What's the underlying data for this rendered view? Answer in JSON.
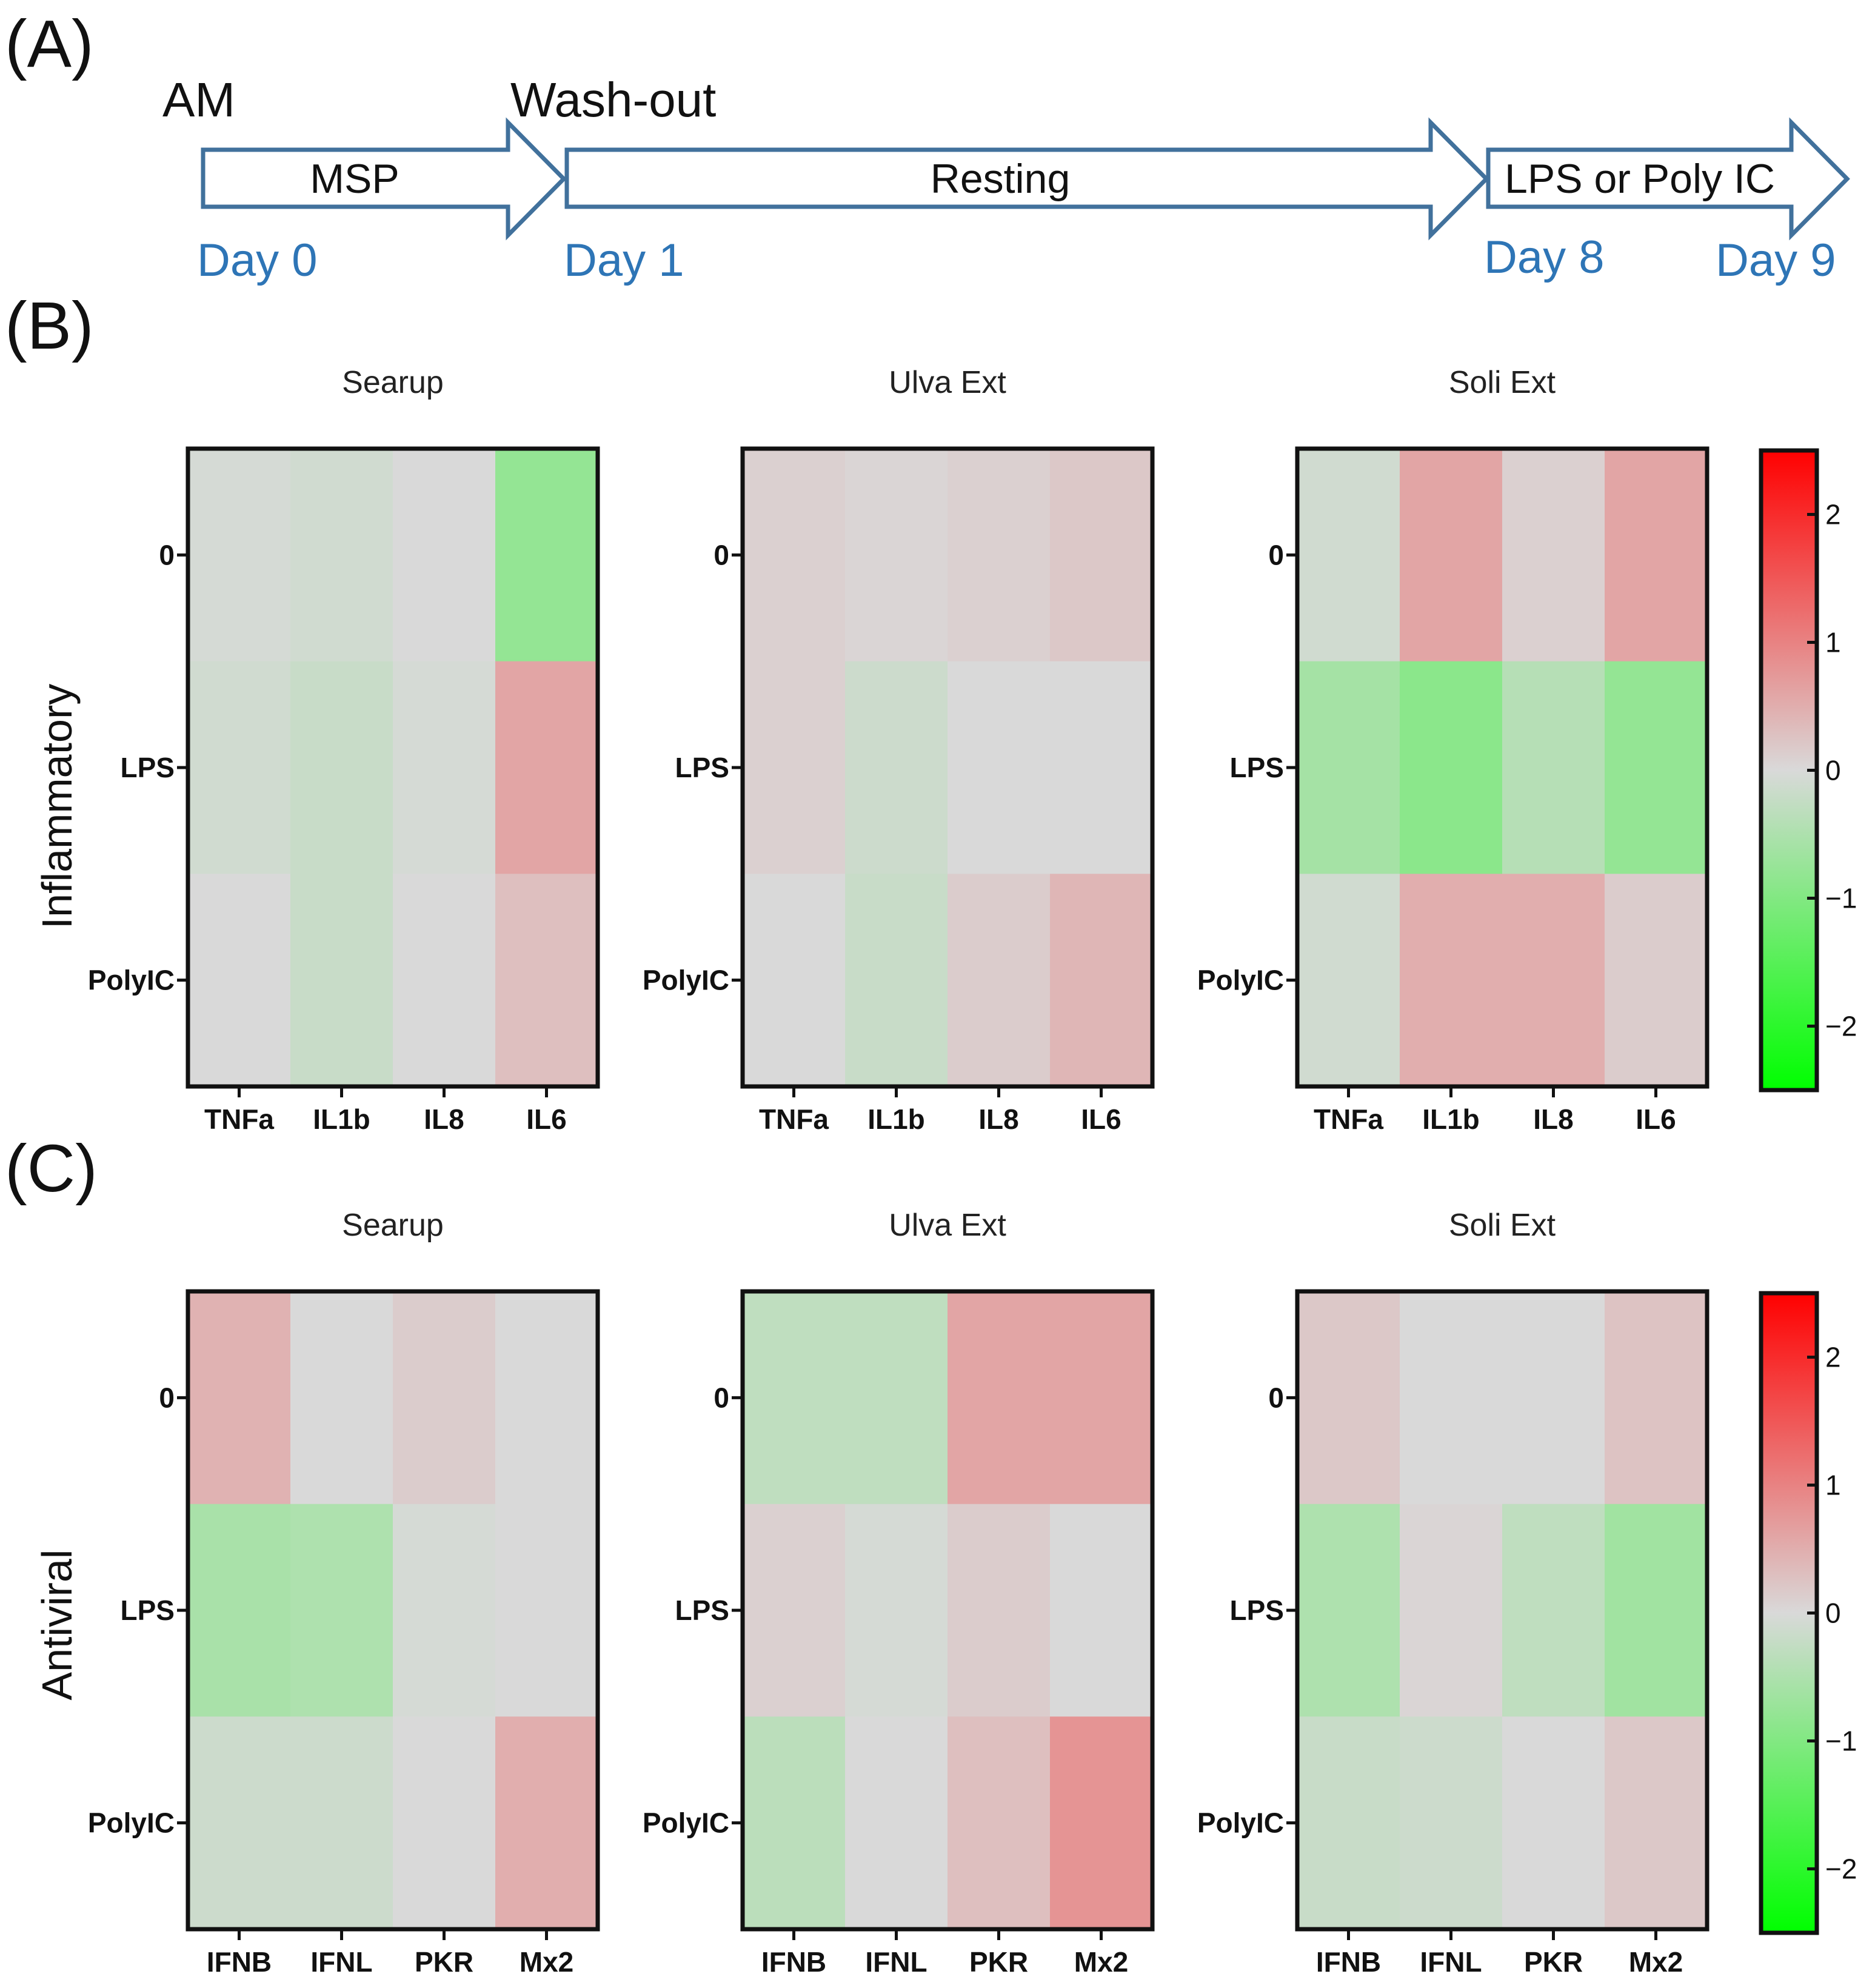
{
  "panel_a": {
    "label": "(A)",
    "am_label": "AM",
    "washout_label": "Wash-out",
    "stages": [
      "MSP",
      "Resting",
      "LPS or Poly IC"
    ],
    "days": [
      "Day 0",
      "Day 1",
      "Day 8",
      "Day 9"
    ]
  },
  "panel_b": {
    "label": "(B)",
    "side_label": "Inflammatory"
  },
  "panel_c": {
    "label": "(C)",
    "side_label": "Antiviral"
  },
  "colorbar": {
    "ticks": [
      "2",
      "1",
      "0",
      "−1",
      "−2"
    ],
    "range": [
      -2.5,
      2.5
    ],
    "low_color": "#00ff00",
    "mid_color": "#d9d9d9",
    "high_color": "#ff0000"
  },
  "chart_data": [
    {
      "type": "heatmap",
      "title": "Searup",
      "group": "Inflammatory",
      "rows": [
        "0",
        "LPS",
        "PolyIC"
      ],
      "columns": [
        "TNFa",
        "IL1b",
        "IL8",
        "IL6"
      ],
      "values": [
        [
          -0.05,
          -0.1,
          0.0,
          -0.8
        ],
        [
          -0.1,
          -0.2,
          -0.05,
          0.6
        ],
        [
          0.0,
          -0.2,
          0.0,
          0.3
        ]
      ]
    },
    {
      "type": "heatmap",
      "title": "Ulva Ext",
      "group": "Inflammatory",
      "rows": [
        "0",
        "LPS",
        "PolyIC"
      ],
      "columns": [
        "TNFa",
        "IL1b",
        "IL8",
        "IL6"
      ],
      "values": [
        [
          0.1,
          0.05,
          0.1,
          0.2
        ],
        [
          0.1,
          -0.15,
          0.0,
          0.0
        ],
        [
          0.0,
          -0.2,
          0.15,
          0.4
        ]
      ]
    },
    {
      "type": "heatmap",
      "title": "Soli Ext",
      "group": "Inflammatory",
      "rows": [
        "0",
        "LPS",
        "PolyIC"
      ],
      "columns": [
        "TNFa",
        "IL1b",
        "IL8",
        "IL6"
      ],
      "values": [
        [
          -0.1,
          0.6,
          0.1,
          0.6
        ],
        [
          -0.6,
          -0.9,
          -0.4,
          -0.8
        ],
        [
          -0.1,
          0.5,
          0.5,
          0.15
        ]
      ]
    },
    {
      "type": "heatmap",
      "title": "Searup",
      "group": "Antiviral",
      "rows": [
        "0",
        "LPS",
        "PolyIC"
      ],
      "columns": [
        "IFNB",
        "IFNL",
        "PKR",
        "Mx2"
      ],
      "values": [
        [
          0.45,
          0.0,
          0.15,
          0.0
        ],
        [
          -0.55,
          -0.5,
          -0.05,
          0.0
        ],
        [
          -0.15,
          -0.15,
          0.0,
          0.5
        ]
      ]
    },
    {
      "type": "heatmap",
      "title": "Ulva Ext",
      "group": "Antiviral",
      "rows": [
        "0",
        "LPS",
        "PolyIC"
      ],
      "columns": [
        "IFNB",
        "IFNL",
        "PKR",
        "Mx2"
      ],
      "values": [
        [
          -0.3,
          -0.3,
          0.6,
          0.6
        ],
        [
          0.1,
          -0.05,
          0.15,
          0.0
        ],
        [
          -0.35,
          0.0,
          0.3,
          0.8
        ]
      ]
    },
    {
      "type": "heatmap",
      "title": "Soli Ext",
      "group": "Antiviral",
      "rows": [
        "0",
        "LPS",
        "PolyIC"
      ],
      "columns": [
        "IFNB",
        "IFNL",
        "PKR",
        "Mx2"
      ],
      "values": [
        [
          0.2,
          0.0,
          0.0,
          0.25
        ],
        [
          -0.5,
          0.05,
          -0.3,
          -0.65
        ],
        [
          -0.2,
          -0.15,
          0.0,
          0.2
        ]
      ]
    }
  ]
}
